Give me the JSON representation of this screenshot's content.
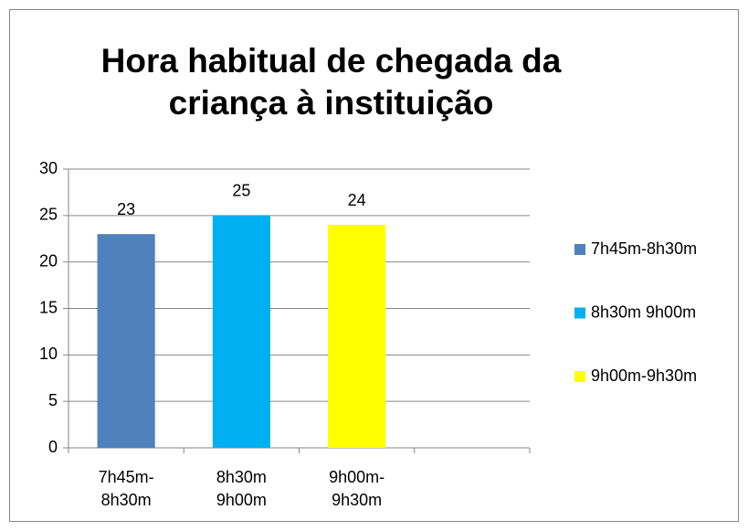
{
  "chart_data": {
    "type": "bar",
    "title": "Hora habitual de chegada da criança à instituição",
    "categories": [
      "7h45m-8h30m",
      "8h30m 9h00m",
      "9h00m-9h30m",
      null
    ],
    "values": [
      23,
      25,
      24,
      null
    ],
    "colors": [
      "#4f81bd",
      "#00b0f0",
      "#ffff00",
      null
    ],
    "ylim": [
      0,
      30
    ],
    "yticks": [
      0,
      5,
      10,
      15,
      20,
      25,
      30
    ],
    "grid": true,
    "legend": "right"
  }
}
